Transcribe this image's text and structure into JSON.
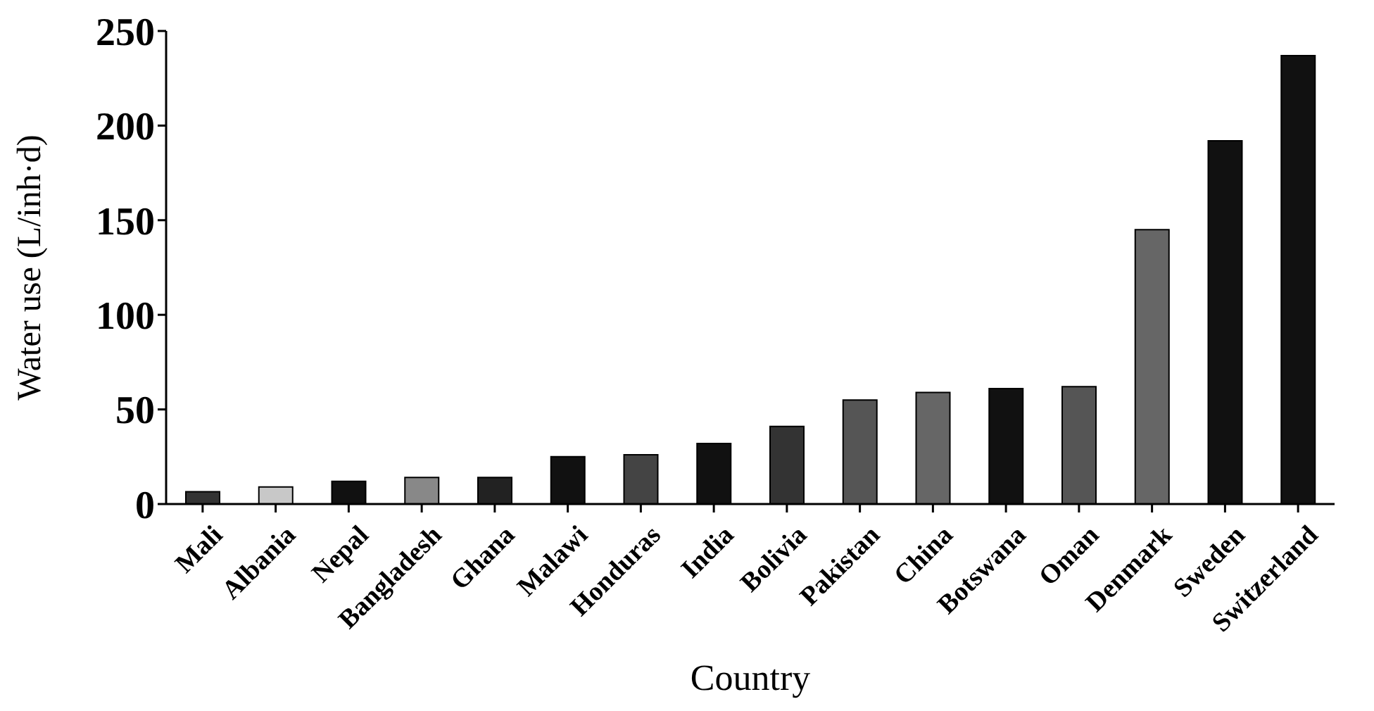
{
  "chart_data": {
    "type": "bar",
    "categories": [
      "Mali",
      "Albania",
      "Nepal",
      "Bangladesh",
      "Ghana",
      "Malawi",
      "Honduras",
      "India",
      "Bolivia",
      "Pakistan",
      "China",
      "Botswana",
      "Oman",
      "Denmark",
      "Sweden",
      "Switzerland"
    ],
    "values": [
      6.5,
      9,
      12,
      14,
      14,
      25,
      26,
      32,
      41,
      55,
      59,
      61,
      62,
      145,
      192,
      237
    ],
    "colors": [
      "#333333",
      "#c8c8c8",
      "#111111",
      "#888888",
      "#222222",
      "#111111",
      "#444444",
      "#111111",
      "#333333",
      "#555555",
      "#666666",
      "#111111",
      "#555555",
      "#666666",
      "#111111",
      "#111111"
    ],
    "xlabel": "Country",
    "ylabel": "Water use (L/inh·d)",
    "ylim": [
      0,
      250
    ],
    "yticks": [
      0,
      50,
      100,
      150,
      200,
      250
    ],
    "grid": false
  }
}
